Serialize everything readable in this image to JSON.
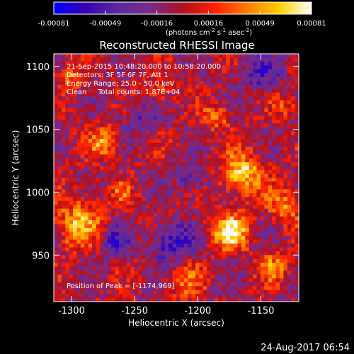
{
  "chart_data": {
    "type": "heatmap",
    "title": "Reconstructed RHESSI Image",
    "xlabel": "Heliocentric X (arcsec)",
    "ylabel": "Heliocentric Y (arcsec)",
    "x_ticks": [
      "-1300",
      "-1250",
      "-1200",
      "-1150"
    ],
    "y_ticks": [
      "1100",
      "1050",
      "1000",
      "950"
    ],
    "x_tick_values": [
      -1300,
      -1250,
      -1200,
      -1150
    ],
    "y_tick_values": [
      1100,
      1050,
      1000,
      950
    ],
    "xlim": [
      -1314,
      -1120
    ],
    "ylim": [
      913,
      1110
    ],
    "colorbar": {
      "min": -0.00081,
      "max": 0.00081,
      "ticks": [
        "-0.00081",
        "-0.00049",
        "-0.00016",
        "0.00016",
        "0.00049",
        "0.00081"
      ],
      "units_main": "(photons cm",
      "units_sup1": "-2",
      "units_mid1": " s",
      "units_sup2": "-1",
      "units_mid2": " asec",
      "units_sup3": "-2",
      "units_end": ")",
      "colors": [
        "#0000ff",
        "#3a00b0",
        "#5a2aa0",
        "#7a2a8a",
        "#b01020",
        "#ff2000",
        "#ff7a00",
        "#ffd000",
        "#ffffff"
      ]
    },
    "annotations": {
      "line1": "21-Sep-2015 10:48:20.000 to 10:58:20.000",
      "line2": "Detectors: 3F 5F 6F 7F, Att 1",
      "line3": "Energy Range: 25.0 - 50.0 keV",
      "line4": "Clean     Total counts: 1.87E+04",
      "peak": "Position of Peak = [-1174,969]"
    },
    "peak": {
      "x": -1174,
      "y": 969
    },
    "hotspots": [
      {
        "x": -1174,
        "y": 969,
        "r": 14,
        "v": 1.0
      },
      {
        "x": -1165,
        "y": 1015,
        "r": 16,
        "v": 0.85
      },
      {
        "x": -1295,
        "y": 975,
        "r": 18,
        "v": 0.7
      },
      {
        "x": -1275,
        "y": 1040,
        "r": 12,
        "v": 0.6
      },
      {
        "x": -1185,
        "y": 1060,
        "r": 10,
        "v": 0.55
      },
      {
        "x": -1130,
        "y": 990,
        "r": 14,
        "v": 0.55
      },
      {
        "x": -1230,
        "y": 1080,
        "r": 10,
        "v": 0.45
      },
      {
        "x": -1300,
        "y": 1090,
        "r": 10,
        "v": 0.5
      },
      {
        "x": -1210,
        "y": 930,
        "r": 14,
        "v": 0.45
      },
      {
        "x": -1140,
        "y": 940,
        "r": 12,
        "v": 0.5
      },
      {
        "x": -1260,
        "y": 1000,
        "r": 8,
        "v": 0.4
      },
      {
        "x": -1130,
        "y": 1070,
        "r": 10,
        "v": 0.4
      }
    ],
    "coldspots": [
      {
        "x": -1220,
        "y": 960,
        "r": 16,
        "v": -0.7
      },
      {
        "x": -1265,
        "y": 960,
        "r": 12,
        "v": -0.6
      },
      {
        "x": -1150,
        "y": 1095,
        "r": 16,
        "v": -0.5
      },
      {
        "x": -1205,
        "y": 1010,
        "r": 12,
        "v": -0.45
      },
      {
        "x": -1245,
        "y": 1060,
        "r": 14,
        "v": -0.35
      }
    ]
  },
  "footer": {
    "timestamp": "24-Aug-2017 06:54"
  }
}
